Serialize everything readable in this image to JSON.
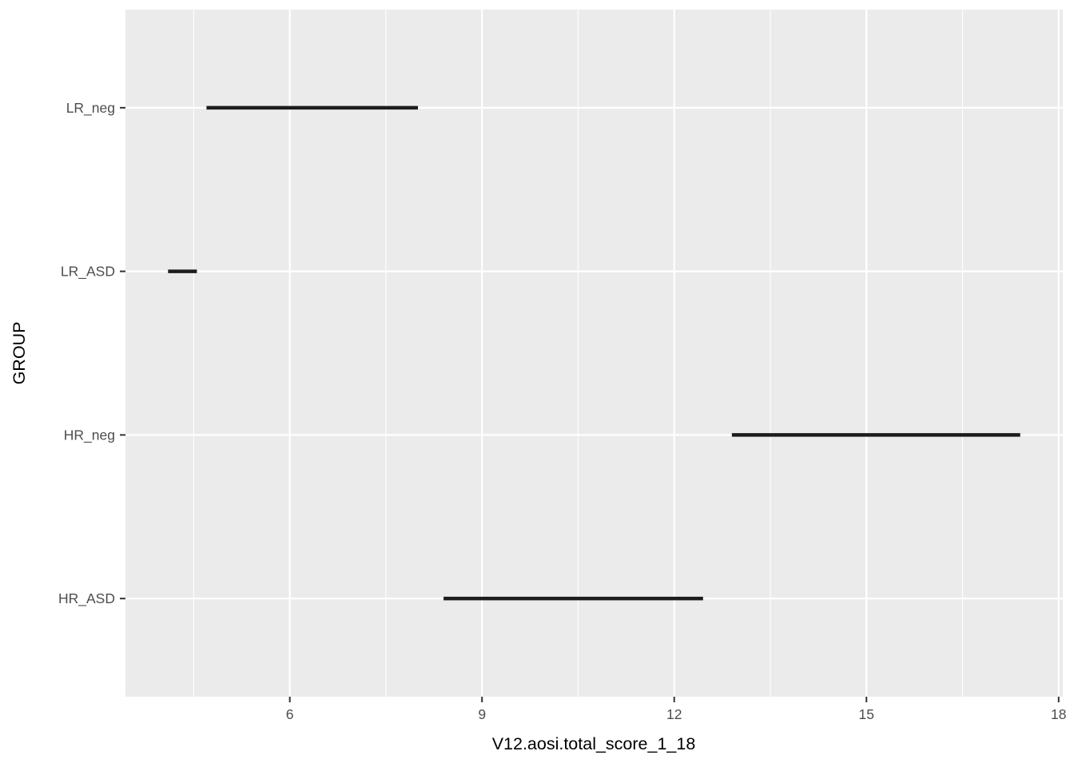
{
  "chart_data": {
    "type": "segment",
    "title": "",
    "xlabel": "V12.aosi.total_score_1_18",
    "ylabel": "GROUP",
    "xlim": [
      3.435,
      18.065
    ],
    "x_ticks": [
      6,
      9,
      12,
      15,
      18
    ],
    "x_tick_labels": [
      "6",
      "9",
      "12",
      "15",
      "18"
    ],
    "x_minor_ticks": [
      4.5,
      7.5,
      10.5,
      13.5,
      16.5
    ],
    "categories_top_to_bottom": [
      "LR_neg",
      "LR_ASD",
      "HR_neg",
      "HR_ASD"
    ],
    "segments": [
      {
        "group": "LR_neg",
        "x_start": 4.7,
        "x_end": 8.0
      },
      {
        "group": "LR_ASD",
        "x_start": 4.1,
        "x_end": 4.55
      },
      {
        "group": "HR_neg",
        "x_start": 12.9,
        "x_end": 17.4
      },
      {
        "group": "HR_ASD",
        "x_start": 8.4,
        "x_end": 12.45
      }
    ],
    "grid": "on",
    "legend": "none",
    "styles": {
      "panel_bg": "#ebebeb",
      "grid_color": "#ffffff",
      "segment_color": "#1c1c1c",
      "tick_mark_color": "#333333",
      "tick_label_color": "#4d4d4d",
      "axis_title_color": "#000000"
    }
  }
}
